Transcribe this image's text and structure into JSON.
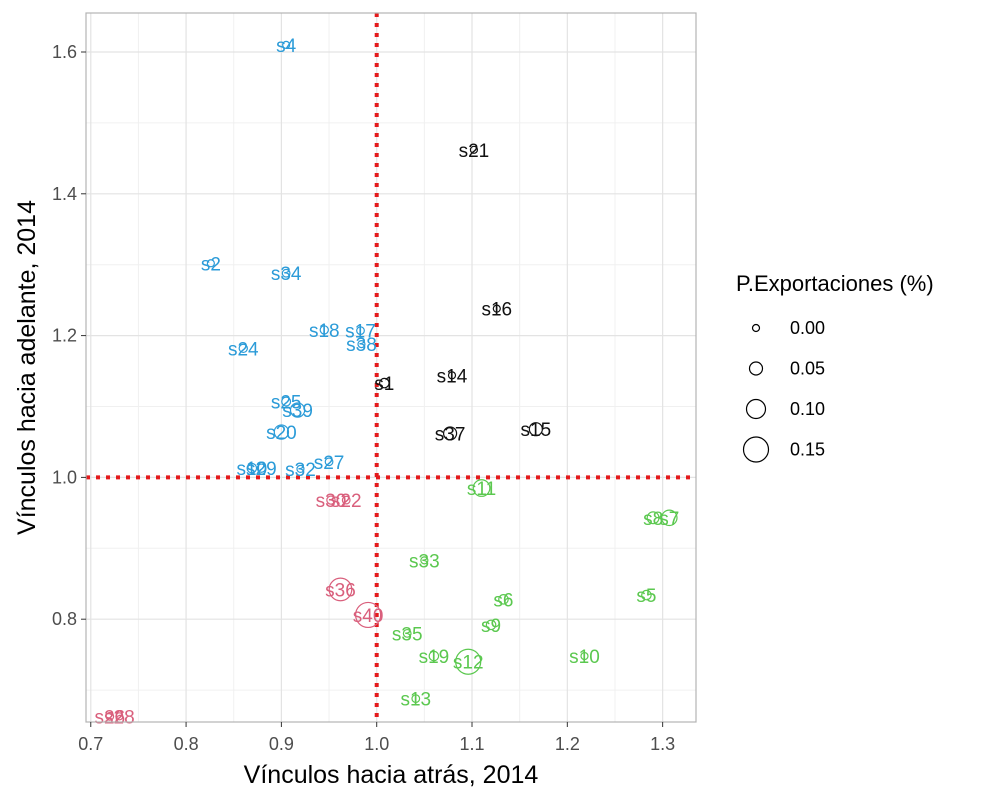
{
  "chart_data": {
    "type": "scatter",
    "title": "",
    "xlabel": "Vínculos hacia atrás, 2014",
    "ylabel": "Vínculos hacia adelante, 2014",
    "xlim": [
      0.695,
      1.335
    ],
    "ylim": [
      0.655,
      1.655
    ],
    "x_ticks": [
      0.7,
      0.8,
      0.9,
      1.0,
      1.1,
      1.2,
      1.3
    ],
    "x_tick_labels": [
      "0.7",
      "0.8",
      "0.9",
      "1.0",
      "1.1",
      "1.2",
      "1.3"
    ],
    "y_ticks": [
      0.8,
      1.0,
      1.2,
      1.4,
      1.6
    ],
    "y_tick_labels": [
      "0.8",
      "1.0",
      "1.2",
      "1.4",
      "1.6"
    ],
    "grid": true,
    "reference_lines": {
      "x": 1.0,
      "y": 1.0,
      "color": "#e41a1c",
      "style": "dotted"
    },
    "colors": {
      "blue": "#2b9bd8",
      "black": "#111111",
      "green": "#5bc84f",
      "red": "#d95f7c"
    },
    "size_legend": {
      "title": "P.Exportaciones (%)",
      "position": "right",
      "entries": [
        {
          "label": "0.00",
          "value": 0.0
        },
        {
          "label": "0.05",
          "value": 0.05
        },
        {
          "label": "0.10",
          "value": 0.1
        },
        {
          "label": "0.15",
          "value": 0.15
        }
      ]
    },
    "points": [
      {
        "label": "s4",
        "x": 0.905,
        "y": 1.61,
        "size": 0.0,
        "color": "blue"
      },
      {
        "label": "s2",
        "x": 0.826,
        "y": 1.302,
        "size": 0.0,
        "color": "blue"
      },
      {
        "label": "s34",
        "x": 0.905,
        "y": 1.288,
        "size": 0.005,
        "color": "blue"
      },
      {
        "label": "s24",
        "x": 0.86,
        "y": 1.182,
        "size": 0.01,
        "color": "blue"
      },
      {
        "label": "s18",
        "x": 0.945,
        "y": 1.208,
        "size": 0.01,
        "color": "blue"
      },
      {
        "label": "s17",
        "x": 0.983,
        "y": 1.207,
        "size": 0.005,
        "color": "blue"
      },
      {
        "label": "s38",
        "x": 0.984,
        "y": 1.188,
        "size": 0.0,
        "color": "blue"
      },
      {
        "label": "s25",
        "x": 0.905,
        "y": 1.107,
        "size": 0.015,
        "color": "blue"
      },
      {
        "label": "s39",
        "x": 0.917,
        "y": 1.095,
        "size": 0.06,
        "color": "blue"
      },
      {
        "label": "s20",
        "x": 0.9,
        "y": 1.064,
        "size": 0.06,
        "color": "blue"
      },
      {
        "label": "s27",
        "x": 0.95,
        "y": 1.022,
        "size": 0.005,
        "color": "blue"
      },
      {
        "label": "s32",
        "x": 0.92,
        "y": 1.012,
        "size": 0.0,
        "color": "blue"
      },
      {
        "label": "s10",
        "x": 0.869,
        "y": 1.013,
        "size": 0.02,
        "color": "blue"
      },
      {
        "label": "s29",
        "x": 0.879,
        "y": 1.013,
        "size": 0.01,
        "color": "blue"
      },
      {
        "label": "s21",
        "x": 1.102,
        "y": 1.462,
        "size": 0.0,
        "color": "black"
      },
      {
        "label": "s16",
        "x": 1.126,
        "y": 1.238,
        "size": 0.0,
        "color": "black"
      },
      {
        "label": "s14",
        "x": 1.079,
        "y": 1.144,
        "size": 0.0,
        "color": "black"
      },
      {
        "label": "s1",
        "x": 1.008,
        "y": 1.133,
        "size": 0.02,
        "color": "black"
      },
      {
        "label": "s15",
        "x": 1.167,
        "y": 1.068,
        "size": 0.05,
        "color": "black"
      },
      {
        "label": "s37",
        "x": 1.077,
        "y": 1.062,
        "size": 0.05,
        "color": "black"
      },
      {
        "label": "s11",
        "x": 1.11,
        "y": 0.985,
        "size": 0.08,
        "color": "green"
      },
      {
        "label": "s8",
        "x": 1.29,
        "y": 0.943,
        "size": 0.04,
        "color": "green"
      },
      {
        "label": "s7",
        "x": 1.307,
        "y": 0.943,
        "size": 0.07,
        "color": "green"
      },
      {
        "label": "s33",
        "x": 1.05,
        "y": 0.883,
        "size": 0.0,
        "color": "green"
      },
      {
        "label": "s6",
        "x": 1.133,
        "y": 0.828,
        "size": 0.02,
        "color": "green"
      },
      {
        "label": "s5",
        "x": 1.283,
        "y": 0.834,
        "size": 0.02,
        "color": "green"
      },
      {
        "label": "s9",
        "x": 1.12,
        "y": 0.792,
        "size": 0.02,
        "color": "green"
      },
      {
        "label": "s35",
        "x": 1.032,
        "y": 0.78,
        "size": 0.005,
        "color": "green"
      },
      {
        "label": "s19",
        "x": 1.06,
        "y": 0.748,
        "size": 0.02,
        "color": "green"
      },
      {
        "label": "s12",
        "x": 1.096,
        "y": 0.74,
        "size": 0.15,
        "color": "green"
      },
      {
        "label": "s10",
        "x": 1.218,
        "y": 0.748,
        "size": 0.0,
        "color": "green"
      },
      {
        "label": "s13",
        "x": 1.041,
        "y": 0.688,
        "size": 0.005,
        "color": "green"
      },
      {
        "label": "s30",
        "x": 0.952,
        "y": 0.968,
        "size": 0.01,
        "color": "red"
      },
      {
        "label": "s22",
        "x": 0.968,
        "y": 0.968,
        "size": 0.005,
        "color": "red"
      },
      {
        "label": "s36",
        "x": 0.962,
        "y": 0.842,
        "size": 0.13,
        "color": "red"
      },
      {
        "label": "s40",
        "x": 0.991,
        "y": 0.806,
        "size": 0.15,
        "color": "red"
      },
      {
        "label": "s26",
        "x": 0.72,
        "y": 0.663,
        "size": 0.005,
        "color": "red"
      },
      {
        "label": "s28",
        "x": 0.73,
        "y": 0.663,
        "size": 0.0,
        "color": "red"
      }
    ]
  }
}
